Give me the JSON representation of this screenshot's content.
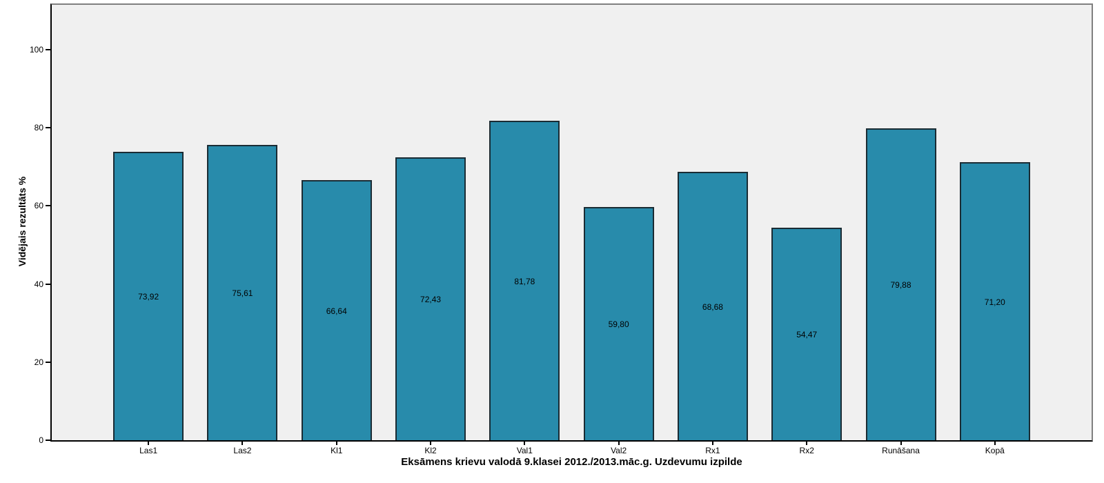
{
  "chart_data": {
    "type": "bar",
    "title": "",
    "xlabel": "Eksāmens krievu valodā 9.klasei 2012./2013.māc.g. Uzdevumu izpilde",
    "ylabel": "Vidējais rezultāts %",
    "categories": [
      "Las1",
      "Las2",
      "Kl1",
      "Kl2",
      "Val1",
      "Val2",
      "Rx1",
      "Rx2",
      "Runāšana",
      "Kopā"
    ],
    "values": [
      73.92,
      75.61,
      66.64,
      72.43,
      81.78,
      59.8,
      68.68,
      54.47,
      79.88,
      71.2
    ],
    "value_labels": [
      "73,92",
      "75,61",
      "66,64",
      "72,43",
      "81,78",
      "59,80",
      "68,68",
      "54,47",
      "79,88",
      "71,20"
    ],
    "yticks": [
      0,
      20,
      40,
      60,
      80,
      100
    ],
    "ylim": [
      0,
      100
    ],
    "grid": false,
    "legend": false,
    "value_label_position": "middle-of-bar",
    "colors": {
      "bar_fill": "#288BAB",
      "bar_border": "#1A2B33",
      "plot_background": "#F0F0F0",
      "frame_border": "#7F7F7F",
      "axis_line": "#000000",
      "text": "#000000",
      "page_background": "#FFFFFF"
    }
  }
}
